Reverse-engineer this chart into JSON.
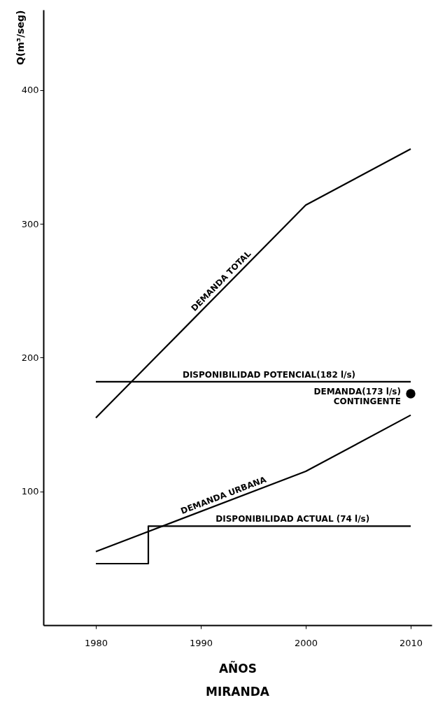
{
  "chart_data": {
    "type": "line",
    "title": "MIRANDA",
    "xlabel": "AÑOS",
    "ylabel": "Q(m³/seg)",
    "xlim": [
      1975,
      2012
    ],
    "xticks": [
      1980,
      1990,
      2000,
      2010
    ],
    "ylim": [
      0,
      460
    ],
    "yticks": [
      100,
      200,
      300,
      400
    ],
    "grid": false,
    "marker": "none",
    "line_style": "solid",
    "series": [
      {
        "name": "DEMANDA TOTAL",
        "color": "#000000",
        "x": [
          1980,
          2000,
          2010
        ],
        "values": [
          155,
          314,
          356
        ]
      },
      {
        "name": "DISPONIBILIDAD POTENCIAL(182 l/s)",
        "color": "#000000",
        "x": [
          1980,
          2010
        ],
        "values": [
          182,
          182
        ]
      },
      {
        "name": "DEMANDA URBANA",
        "color": "#000000",
        "x": [
          1980,
          2000,
          2010
        ],
        "values": [
          55,
          115,
          157
        ]
      },
      {
        "name": "DISPONIBILIDAD ACTUAL (74 l/s)",
        "type": "step",
        "color": "#000000",
        "x": [
          1980,
          1985,
          2010
        ],
        "values": [
          46,
          74,
          74
        ]
      },
      {
        "name": "DEMANDA(173 l/s)\nCONTINGENTE",
        "type": "scatter",
        "marker": "circle",
        "color": "#000000",
        "x": [
          2010
        ],
        "values": [
          173
        ]
      }
    ]
  }
}
